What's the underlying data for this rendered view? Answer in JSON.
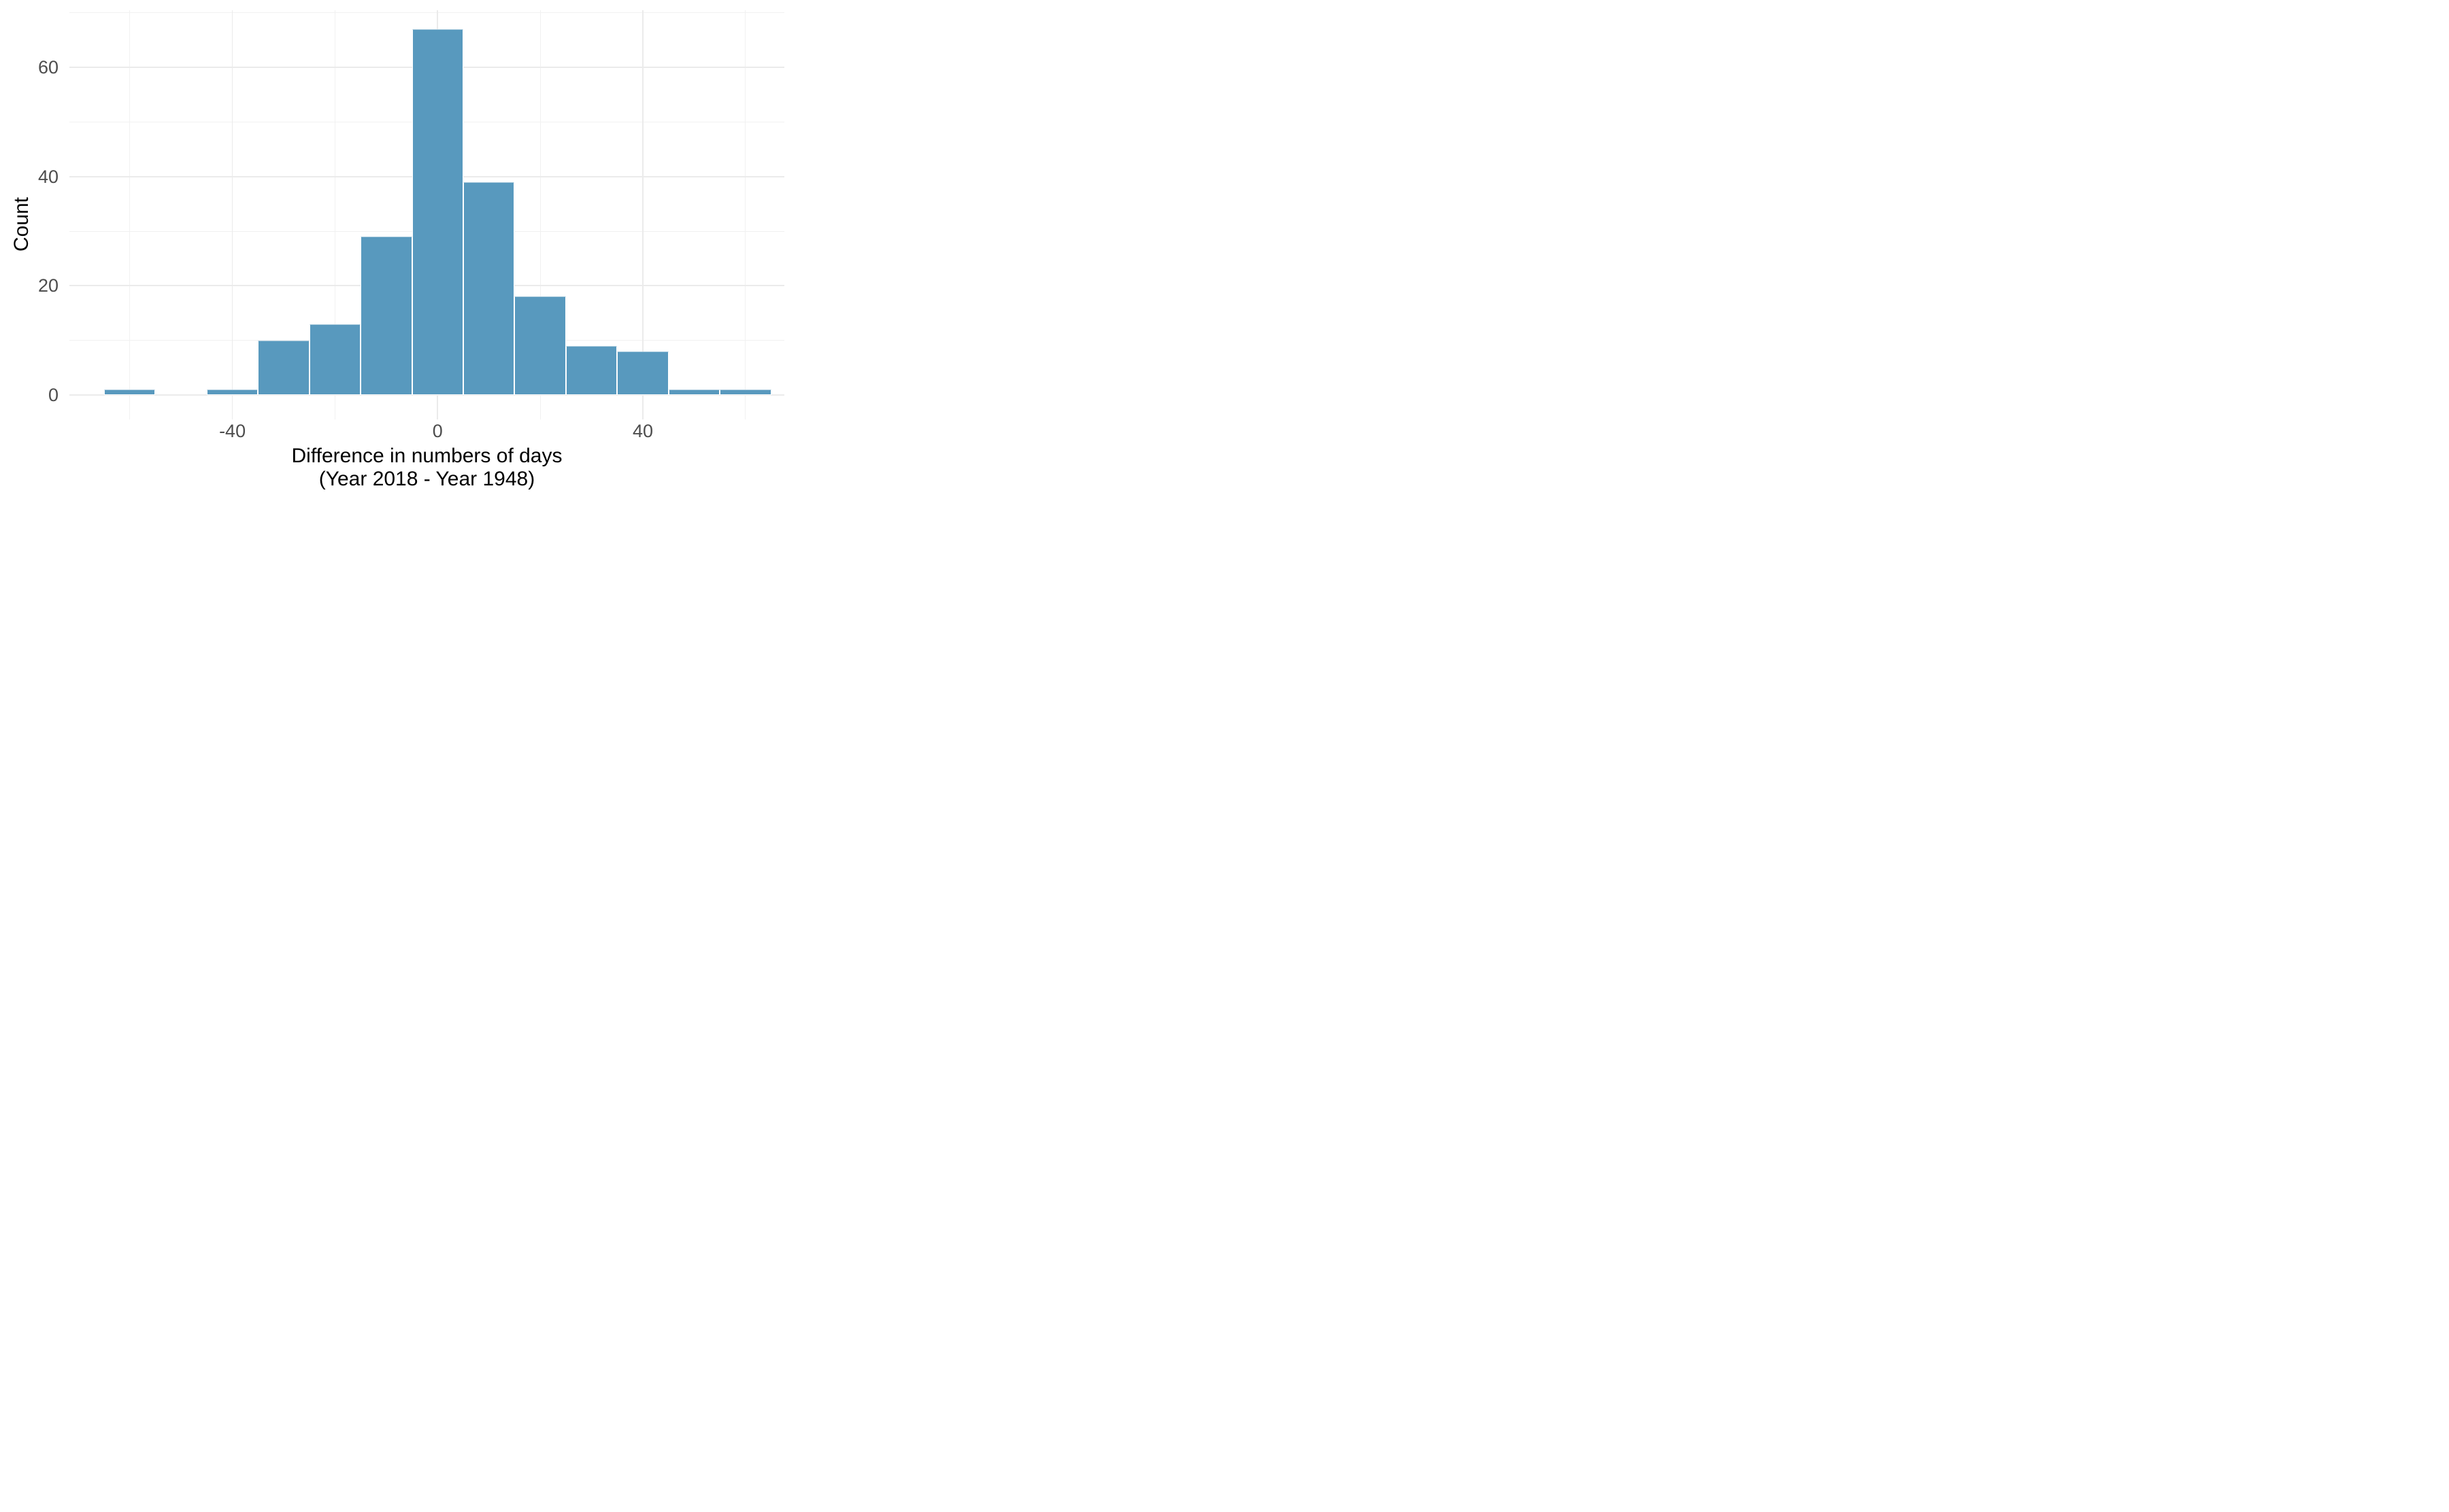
{
  "chart_data": {
    "type": "bar",
    "subtype": "histogram",
    "title": "",
    "ylabel": "Count",
    "xlabel_line1": "Difference in numbers of days",
    "xlabel_line2": "(Year 2018 - Year 1948)",
    "binwidth": 10,
    "bin_centers": [
      -60,
      -40,
      -30,
      -20,
      -10,
      0,
      10,
      20,
      30,
      40,
      50,
      60
    ],
    "counts": [
      1,
      1,
      10,
      13,
      29,
      67,
      39,
      18,
      9,
      8,
      1,
      1
    ],
    "x_major_ticks": [
      {
        "value": -40,
        "label": "-40"
      },
      {
        "value": 0,
        "label": "0"
      },
      {
        "value": 40,
        "label": "40"
      }
    ],
    "x_minor_gridlines": [
      -60,
      -20,
      20,
      60
    ],
    "y_major_ticks": [
      {
        "value": 0,
        "label": "0"
      },
      {
        "value": 20,
        "label": "20"
      },
      {
        "value": 40,
        "label": "40"
      },
      {
        "value": 60,
        "label": "60"
      }
    ],
    "y_minor_gridlines": [
      10,
      30,
      50,
      70
    ],
    "x_range": [
      -71.8,
      67.5
    ],
    "y_range": [
      0,
      70.4
    ],
    "grid": true,
    "legend": "none",
    "colors": {
      "bar_fill": "#5899BE",
      "bar_stroke": "#FFFFFF",
      "grid_major": "#EBEBEB",
      "grid_minor": "#F1F1F1",
      "tick_label": "#4D4D4D",
      "axis_title": "#000000",
      "background": "#FFFFFF"
    }
  }
}
